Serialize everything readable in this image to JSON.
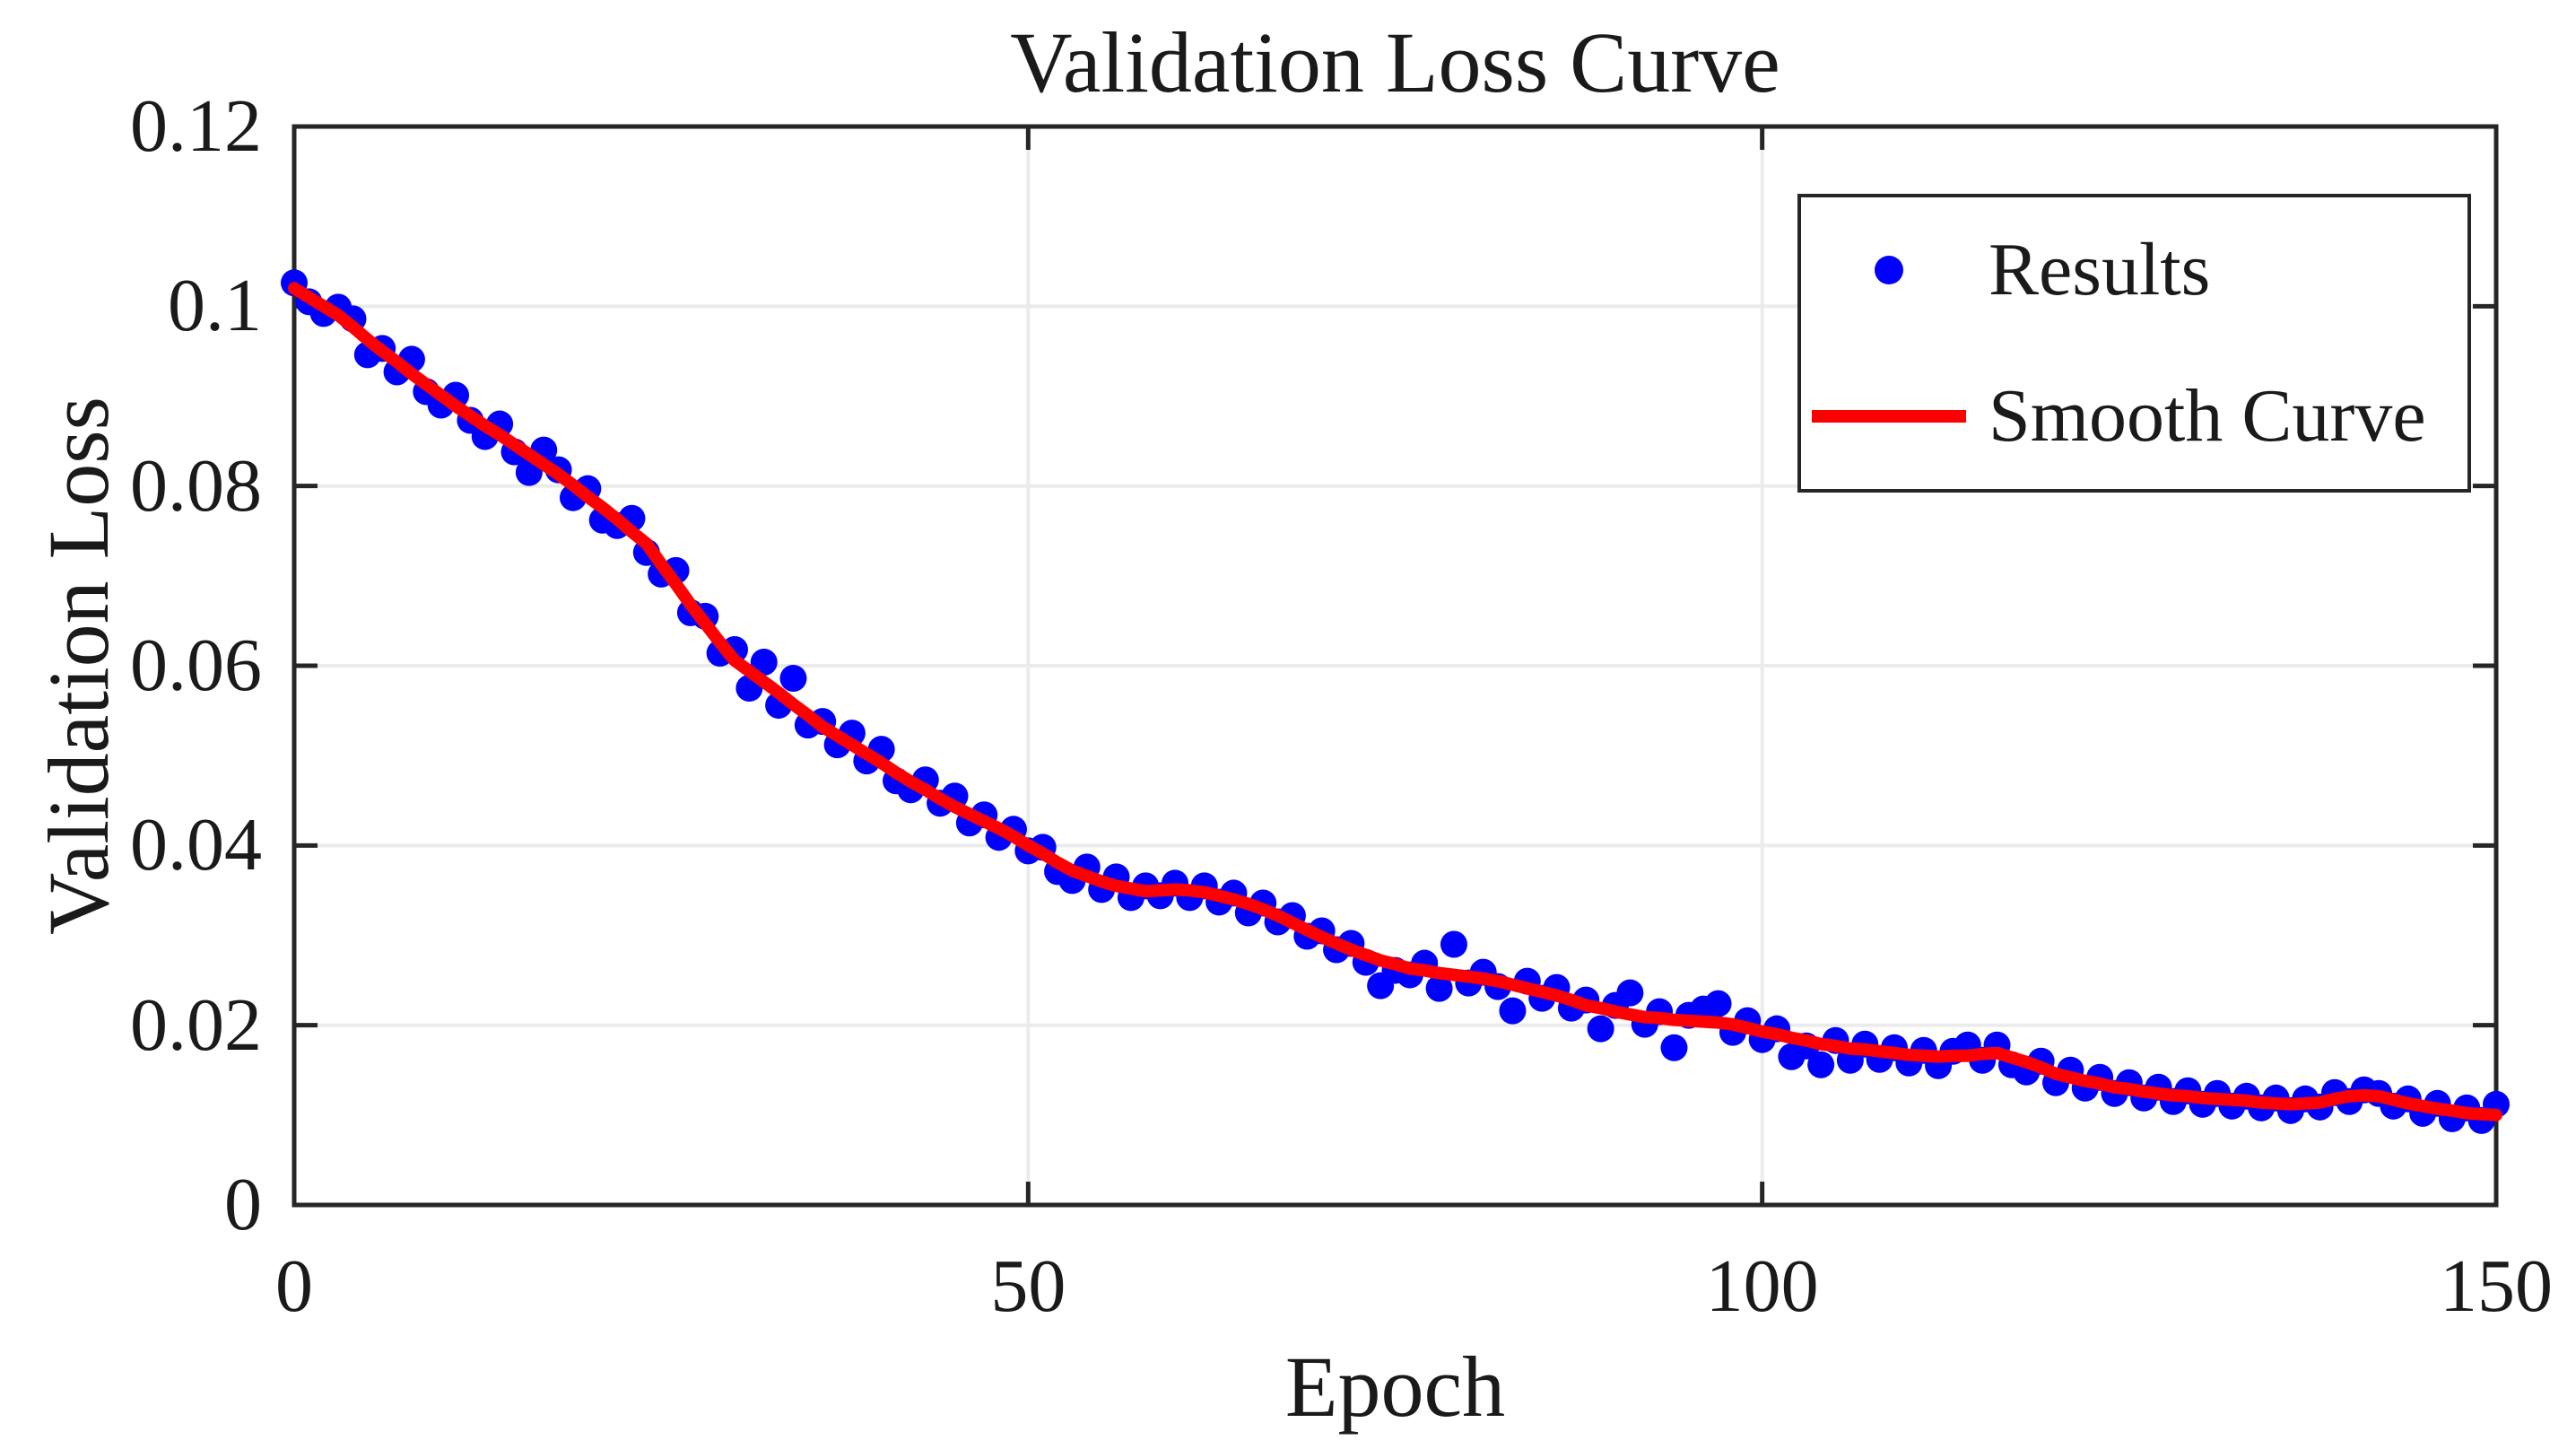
{
  "figure": {
    "background_color": "#FFFFFF",
    "axis_color": "#262626",
    "grid_color": "#EBEBEB",
    "text_color": "#1A1A1A"
  },
  "chart_data": {
    "type": "scatter",
    "title": "Validation Loss Curve",
    "xlabel": "Epoch",
    "ylabel": "Validation Loss",
    "xlim": [
      0,
      150
    ],
    "ylim": [
      0,
      0.12
    ],
    "xticks": [
      0,
      50,
      100,
      150
    ],
    "xtick_labels": [
      "0",
      "50",
      "100",
      "150"
    ],
    "yticks": [
      0,
      0.02,
      0.04,
      0.06,
      0.08,
      0.1,
      0.12
    ],
    "ytick_labels": [
      "0",
      "0.02",
      "0.04",
      "0.06",
      "0.08",
      "0.1",
      "0.12"
    ],
    "grid": true,
    "legend": {
      "position": "top-right",
      "entries": [
        {
          "label": "Results",
          "type": "marker",
          "color": "#0000FF"
        },
        {
          "label": "Smooth Curve",
          "type": "line",
          "color": "#FF0000"
        }
      ]
    },
    "x": [
      0,
      1,
      2,
      3,
      4,
      5,
      6,
      7,
      8,
      9,
      10,
      11,
      12,
      13,
      14,
      15,
      16,
      17,
      18,
      19,
      20,
      21,
      22,
      23,
      24,
      25,
      26,
      27,
      28,
      29,
      30,
      31,
      32,
      33,
      34,
      35,
      36,
      37,
      38,
      39,
      40,
      41,
      42,
      43,
      44,
      45,
      46,
      47,
      48,
      49,
      50,
      51,
      52,
      53,
      54,
      55,
      56,
      57,
      58,
      59,
      60,
      61,
      62,
      63,
      64,
      65,
      66,
      67,
      68,
      69,
      70,
      71,
      72,
      73,
      74,
      75,
      76,
      77,
      78,
      79,
      80,
      81,
      82,
      83,
      84,
      85,
      86,
      87,
      88,
      89,
      90,
      91,
      92,
      93,
      94,
      95,
      96,
      97,
      98,
      99,
      100,
      101,
      102,
      103,
      104,
      105,
      106,
      107,
      108,
      109,
      110,
      111,
      112,
      113,
      114,
      115,
      116,
      117,
      118,
      119,
      120,
      121,
      122,
      123,
      124,
      125,
      126,
      127,
      128,
      129,
      130,
      131,
      132,
      133,
      134,
      135,
      136,
      137,
      138,
      139,
      140,
      141,
      142,
      143,
      144,
      145,
      146,
      147,
      148,
      149,
      150
    ],
    "series": [
      {
        "name": "Results",
        "render": "scatter",
        "color": "#0000FF",
        "marker": "dot",
        "values": [
          0.1026,
          0.1005,
          0.0992,
          0.0999,
          0.0986,
          0.0946,
          0.0953,
          0.0927,
          0.0941,
          0.0905,
          0.089,
          0.0901,
          0.0873,
          0.0855,
          0.0869,
          0.0838,
          0.0815,
          0.084,
          0.0818,
          0.0787,
          0.0797,
          0.0762,
          0.0756,
          0.0764,
          0.0726,
          0.0702,
          0.0706,
          0.0659,
          0.0655,
          0.0614,
          0.0618,
          0.0575,
          0.0604,
          0.0556,
          0.0586,
          0.0534,
          0.0538,
          0.0512,
          0.0525,
          0.0494,
          0.0507,
          0.0472,
          0.0462,
          0.0473,
          0.0447,
          0.0455,
          0.0425,
          0.0434,
          0.0409,
          0.0418,
          0.0394,
          0.0398,
          0.0371,
          0.0361,
          0.0376,
          0.0351,
          0.0365,
          0.0342,
          0.0355,
          0.0344,
          0.0358,
          0.0342,
          0.0355,
          0.0337,
          0.0347,
          0.0325,
          0.0336,
          0.0315,
          0.0322,
          0.0299,
          0.0305,
          0.0284,
          0.0291,
          0.027,
          0.0244,
          0.0261,
          0.0256,
          0.0269,
          0.0241,
          0.029,
          0.0247,
          0.0259,
          0.0243,
          0.0216,
          0.0249,
          0.023,
          0.0242,
          0.0219,
          0.0228,
          0.0196,
          0.0222,
          0.0236,
          0.0201,
          0.0215,
          0.0175,
          0.0211,
          0.0218,
          0.0224,
          0.0192,
          0.0205,
          0.0184,
          0.0196,
          0.0165,
          0.0177,
          0.0156,
          0.0183,
          0.0161,
          0.0179,
          0.0162,
          0.0175,
          0.0158,
          0.0172,
          0.0155,
          0.0171,
          0.0178,
          0.0161,
          0.0178,
          0.0156,
          0.0148,
          0.016,
          0.0136,
          0.015,
          0.013,
          0.0142,
          0.0124,
          0.0136,
          0.0119,
          0.0131,
          0.0115,
          0.0127,
          0.0112,
          0.0124,
          0.011,
          0.0121,
          0.0108,
          0.0119,
          0.0105,
          0.0118,
          0.0109,
          0.0125,
          0.0115,
          0.0128,
          0.0124,
          0.011,
          0.0118,
          0.0102,
          0.0113,
          0.0096,
          0.0108,
          0.0094,
          0.0112
        ]
      },
      {
        "name": "Smooth Curve",
        "render": "line",
        "color": "#FF0000",
        "values": [
          0.102,
          0.101,
          0.1,
          0.099,
          0.0977,
          0.0963,
          0.095,
          0.0938,
          0.0925,
          0.0913,
          0.0901,
          0.0889,
          0.0878,
          0.0867,
          0.0857,
          0.0846,
          0.0835,
          0.0824,
          0.0813,
          0.0801,
          0.0788,
          0.0776,
          0.0763,
          0.0749,
          0.0736,
          0.0713,
          0.0691,
          0.0668,
          0.0647,
          0.0626,
          0.0606,
          0.0594,
          0.0582,
          0.057,
          0.0557,
          0.0545,
          0.0532,
          0.0522,
          0.0512,
          0.0502,
          0.0492,
          0.0481,
          0.0471,
          0.0462,
          0.0452,
          0.0443,
          0.0435,
          0.0427,
          0.0419,
          0.041,
          0.04,
          0.0391,
          0.0381,
          0.0372,
          0.0366,
          0.036,
          0.0355,
          0.0352,
          0.0349,
          0.035,
          0.0351,
          0.035,
          0.0348,
          0.0344,
          0.034,
          0.0335,
          0.0329,
          0.0322,
          0.0314,
          0.0306,
          0.0298,
          0.0291,
          0.0284,
          0.0278,
          0.0272,
          0.0268,
          0.0263,
          0.0261,
          0.0258,
          0.0256,
          0.0254,
          0.0252,
          0.0249,
          0.0245,
          0.0241,
          0.0237,
          0.0233,
          0.0228,
          0.0222,
          0.0219,
          0.0215,
          0.0212,
          0.0209,
          0.0208,
          0.0206,
          0.0205,
          0.0204,
          0.0203,
          0.0201,
          0.0197,
          0.0193,
          0.019,
          0.0186,
          0.0183,
          0.0179,
          0.0177,
          0.0174,
          0.0173,
          0.0171,
          0.0169,
          0.0167,
          0.0166,
          0.0165,
          0.0166,
          0.0166,
          0.0168,
          0.0169,
          0.0164,
          0.0159,
          0.0153,
          0.0146,
          0.0142,
          0.0138,
          0.0135,
          0.0131,
          0.0129,
          0.0126,
          0.0124,
          0.0122,
          0.0121,
          0.0119,
          0.0118,
          0.0117,
          0.0116,
          0.0114,
          0.0113,
          0.0112,
          0.0113,
          0.0114,
          0.0118,
          0.0121,
          0.0122,
          0.0121,
          0.0117,
          0.0113,
          0.011,
          0.0107,
          0.0105,
          0.0102,
          0.0101,
          0.01
        ]
      }
    ]
  }
}
